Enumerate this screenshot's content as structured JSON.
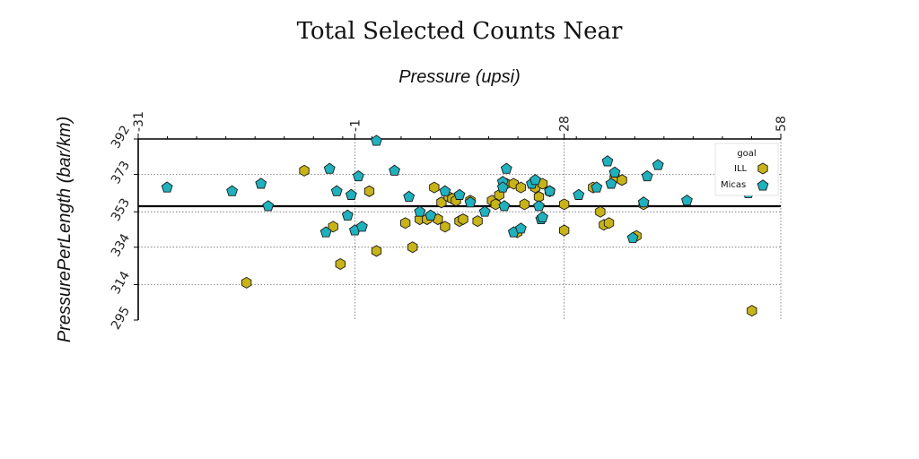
{
  "chart_data": {
    "type": "scatter",
    "title": "Total Selected Counts Near",
    "xlabel": "Pressure (upsi)",
    "ylabel": "PressurePerLength (bar/km)",
    "xlim": [
      -31,
      58
    ],
    "ylim": [
      295,
      392
    ],
    "x_ticks": [
      -31,
      -1,
      28,
      58
    ],
    "y_ticks": [
      295,
      314,
      334,
      353,
      373,
      392
    ],
    "grid": true,
    "x_axis_position": "top",
    "reference_line_y": 356,
    "legend": {
      "title": "goal",
      "placement": "right"
    },
    "series": [
      {
        "name": "ILL",
        "marker": "hexagon",
        "color": "#c8b318",
        "points": [
          [
            -16,
            315
          ],
          [
            -8,
            375
          ],
          [
            -4,
            345
          ],
          [
            -3,
            325
          ],
          [
            1,
            364
          ],
          [
            2,
            332
          ],
          [
            6,
            347
          ],
          [
            7,
            334
          ],
          [
            8,
            349
          ],
          [
            9,
            349
          ],
          [
            10,
            366
          ],
          [
            10.5,
            349
          ],
          [
            11,
            358
          ],
          [
            11.5,
            345
          ],
          [
            12,
            361
          ],
          [
            12.5,
            360
          ],
          [
            13,
            359
          ],
          [
            13.5,
            348
          ],
          [
            14,
            349
          ],
          [
            15,
            359
          ],
          [
            16,
            348
          ],
          [
            18,
            359
          ],
          [
            18.5,
            357
          ],
          [
            19,
            362
          ],
          [
            20,
            368
          ],
          [
            21,
            368
          ],
          [
            21.5,
            342
          ],
          [
            22,
            366
          ],
          [
            22.5,
            357
          ],
          [
            24,
            366
          ],
          [
            24.5,
            361
          ],
          [
            25,
            368
          ],
          [
            26,
            364
          ],
          [
            28,
            357
          ],
          [
            28,
            343
          ],
          [
            32,
            366
          ],
          [
            33,
            353
          ],
          [
            33.5,
            346
          ],
          [
            34.2,
            347
          ],
          [
            35,
            371
          ],
          [
            36,
            370
          ],
          [
            38,
            340
          ],
          [
            39,
            357
          ],
          [
            54,
            300
          ]
        ]
      },
      {
        "name": "Micas",
        "marker": "pentagon",
        "color": "#1fb1bd",
        "points": [
          [
            -27,
            366
          ],
          [
            -18,
            364
          ],
          [
            -14,
            368
          ],
          [
            -13,
            356
          ],
          [
            -5,
            342
          ],
          [
            -4.5,
            376
          ],
          [
            -3.5,
            364
          ],
          [
            -2,
            351
          ],
          [
            -1.5,
            362
          ],
          [
            -1,
            343
          ],
          [
            -0.5,
            372
          ],
          [
            0,
            345
          ],
          [
            2,
            391
          ],
          [
            4.5,
            375
          ],
          [
            6.5,
            361
          ],
          [
            8,
            353
          ],
          [
            9.5,
            351
          ],
          [
            11.5,
            364
          ],
          [
            13.5,
            362
          ],
          [
            15,
            358
          ],
          [
            17,
            353
          ],
          [
            19.5,
            369
          ],
          [
            19.5,
            366
          ],
          [
            19.7,
            356
          ],
          [
            20,
            376
          ],
          [
            21,
            342
          ],
          [
            22,
            344
          ],
          [
            23.5,
            368
          ],
          [
            24,
            370
          ],
          [
            24.5,
            356
          ],
          [
            24.8,
            349
          ],
          [
            25,
            350
          ],
          [
            26,
            364
          ],
          [
            30,
            362
          ],
          [
            32.5,
            366
          ],
          [
            34,
            380
          ],
          [
            34.5,
            368
          ],
          [
            35,
            374
          ],
          [
            37.5,
            339
          ],
          [
            39,
            358
          ],
          [
            39.5,
            372
          ],
          [
            41,
            378
          ],
          [
            45,
            359
          ],
          [
            53.5,
            363
          ]
        ]
      }
    ]
  }
}
